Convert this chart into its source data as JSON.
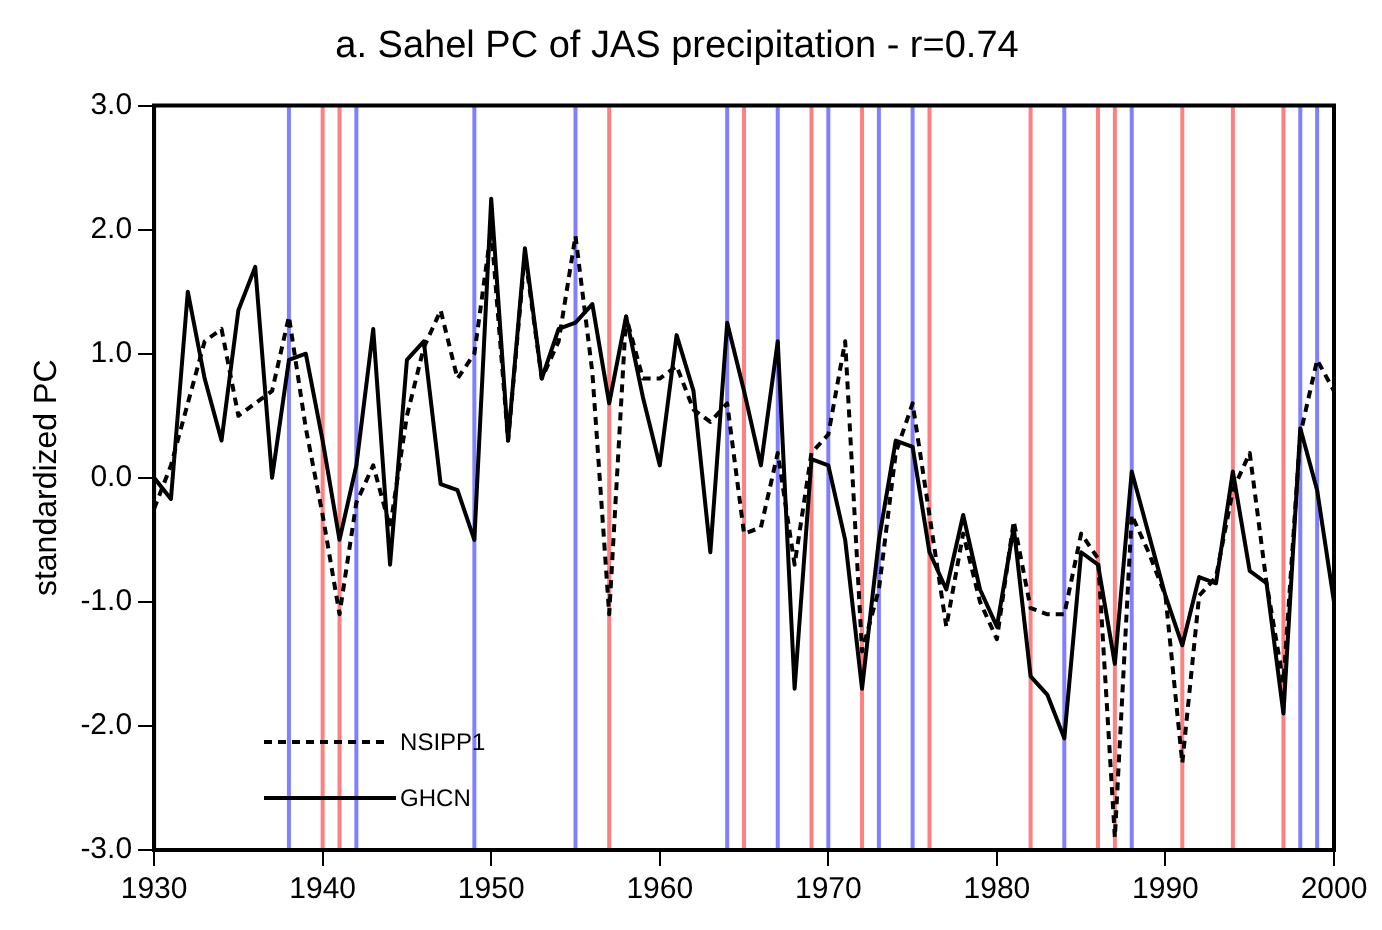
{
  "chart_data": {
    "type": "line",
    "title": "a. Sahel PC of JAS precipitation - r=0.74",
    "ylabel": "standardized PC",
    "x": [
      1930,
      1931,
      1932,
      1933,
      1934,
      1935,
      1936,
      1937,
      1938,
      1939,
      1940,
      1941,
      1942,
      1943,
      1944,
      1945,
      1946,
      1947,
      1948,
      1949,
      1950,
      1951,
      1952,
      1953,
      1954,
      1955,
      1956,
      1957,
      1958,
      1959,
      1960,
      1961,
      1962,
      1963,
      1964,
      1965,
      1966,
      1967,
      1968,
      1969,
      1970,
      1971,
      1972,
      1973,
      1974,
      1975,
      1976,
      1977,
      1978,
      1979,
      1980,
      1981,
      1982,
      1983,
      1984,
      1985,
      1986,
      1987,
      1988,
      1989,
      1990,
      1991,
      1992,
      1993,
      1994,
      1995,
      1996,
      1997,
      1998,
      1999,
      2000
    ],
    "series": [
      {
        "name": "NSIPP1",
        "color": "#000000",
        "line_style": "dashed",
        "values": [
          -0.25,
          0.1,
          0.6,
          1.1,
          1.2,
          0.5,
          0.6,
          0.7,
          1.3,
          0.4,
          -0.3,
          -1.1,
          -0.2,
          0.1,
          -0.4,
          0.5,
          1.05,
          1.35,
          0.8,
          1.0,
          2.0,
          0.3,
          1.8,
          0.8,
          1.1,
          1.95,
          0.85,
          -1.1,
          1.3,
          0.8,
          0.8,
          0.9,
          0.55,
          0.45,
          0.6,
          -0.45,
          -0.4,
          0.2,
          -0.7,
          0.2,
          0.35,
          1.1,
          -1.4,
          -0.9,
          0.2,
          0.6,
          -0.3,
          -1.2,
          -0.45,
          -1.0,
          -1.3,
          -0.35,
          -1.05,
          -1.1,
          -1.1,
          -0.45,
          -0.65,
          -2.9,
          -0.3,
          -0.6,
          -0.95,
          -2.3,
          -0.95,
          -0.8,
          -0.1,
          0.2,
          -0.85,
          -1.65,
          0.35,
          0.95,
          0.7
        ]
      },
      {
        "name": "GHCN",
        "color": "#000000",
        "line_style": "solid",
        "values": [
          0.0,
          -0.17,
          1.5,
          0.8,
          0.3,
          1.35,
          1.7,
          0.0,
          0.95,
          1.0,
          0.3,
          -0.5,
          0.1,
          1.2,
          -0.7,
          0.95,
          1.1,
          -0.05,
          -0.1,
          -0.5,
          2.25,
          0.3,
          1.85,
          0.8,
          1.2,
          1.25,
          1.4,
          0.6,
          1.3,
          0.65,
          0.1,
          1.15,
          0.7,
          -0.6,
          1.25,
          0.7,
          0.1,
          1.1,
          -1.7,
          0.15,
          0.1,
          -0.5,
          -1.7,
          -0.5,
          0.3,
          0.25,
          -0.6,
          -0.9,
          -0.3,
          -0.9,
          -1.2,
          -0.4,
          -1.6,
          -1.75,
          -2.1,
          -0.6,
          -0.7,
          -1.5,
          0.05,
          -0.45,
          -0.95,
          -1.35,
          -0.8,
          -0.85,
          0.05,
          -0.75,
          -0.85,
          -1.9,
          0.4,
          -0.1,
          -1.0
        ]
      }
    ],
    "xlim": [
      1930,
      2000
    ],
    "xticks": [
      1930,
      1940,
      1950,
      1960,
      1970,
      1980,
      1990,
      2000
    ],
    "ylim": [
      -3,
      3
    ],
    "yticks": [
      {
        "value": -3,
        "label": "-3.0"
      },
      {
        "value": -2,
        "label": "-2.0"
      },
      {
        "value": -1,
        "label": "-1.0"
      },
      {
        "value": 0,
        "label": "0.0"
      },
      {
        "value": 1,
        "label": "1.0"
      },
      {
        "value": 2,
        "label": "2.0"
      },
      {
        "value": 3,
        "label": "3.0"
      }
    ],
    "legend": "bottom left",
    "ref_lines": [
      {
        "axis": "x",
        "value": 1938,
        "color": "#8080ff"
      },
      {
        "axis": "x",
        "value": 1940,
        "color": "#ff8080"
      },
      {
        "axis": "x",
        "value": 1941,
        "color": "#ff8080"
      },
      {
        "axis": "x",
        "value": 1942,
        "color": "#8080ff"
      },
      {
        "axis": "x",
        "value": 1949,
        "color": "#8080ff"
      },
      {
        "axis": "x",
        "value": 1955,
        "color": "#8080ff"
      },
      {
        "axis": "x",
        "value": 1957,
        "color": "#ff8080"
      },
      {
        "axis": "x",
        "value": 1964,
        "color": "#8080ff"
      },
      {
        "axis": "x",
        "value": 1965,
        "color": "#ff8080"
      },
      {
        "axis": "x",
        "value": 1967,
        "color": "#8080ff"
      },
      {
        "axis": "x",
        "value": 1969,
        "color": "#ff8080"
      },
      {
        "axis": "x",
        "value": 1970,
        "color": "#8080ff"
      },
      {
        "axis": "x",
        "value": 1972,
        "color": "#ff8080"
      },
      {
        "axis": "x",
        "value": 1973,
        "color": "#8080ff"
      },
      {
        "axis": "x",
        "value": 1975,
        "color": "#8080ff"
      },
      {
        "axis": "x",
        "value": 1976,
        "color": "#ff8080"
      },
      {
        "axis": "x",
        "value": 1982,
        "color": "#ff8080"
      },
      {
        "axis": "x",
        "value": 1984,
        "color": "#8080ff"
      },
      {
        "axis": "x",
        "value": 1986,
        "color": "#ff8080"
      },
      {
        "axis": "x",
        "value": 1987,
        "color": "#ff8080"
      },
      {
        "axis": "x",
        "value": 1988,
        "color": "#8080ff"
      },
      {
        "axis": "x",
        "value": 1991,
        "color": "#ff8080"
      },
      {
        "axis": "x",
        "value": 1994,
        "color": "#ff8080"
      },
      {
        "axis": "x",
        "value": 1997,
        "color": "#ff8080"
      },
      {
        "axis": "x",
        "value": 1998,
        "color": "#8080ff"
      },
      {
        "axis": "x",
        "value": 1999,
        "color": "#8080ff"
      }
    ]
  }
}
